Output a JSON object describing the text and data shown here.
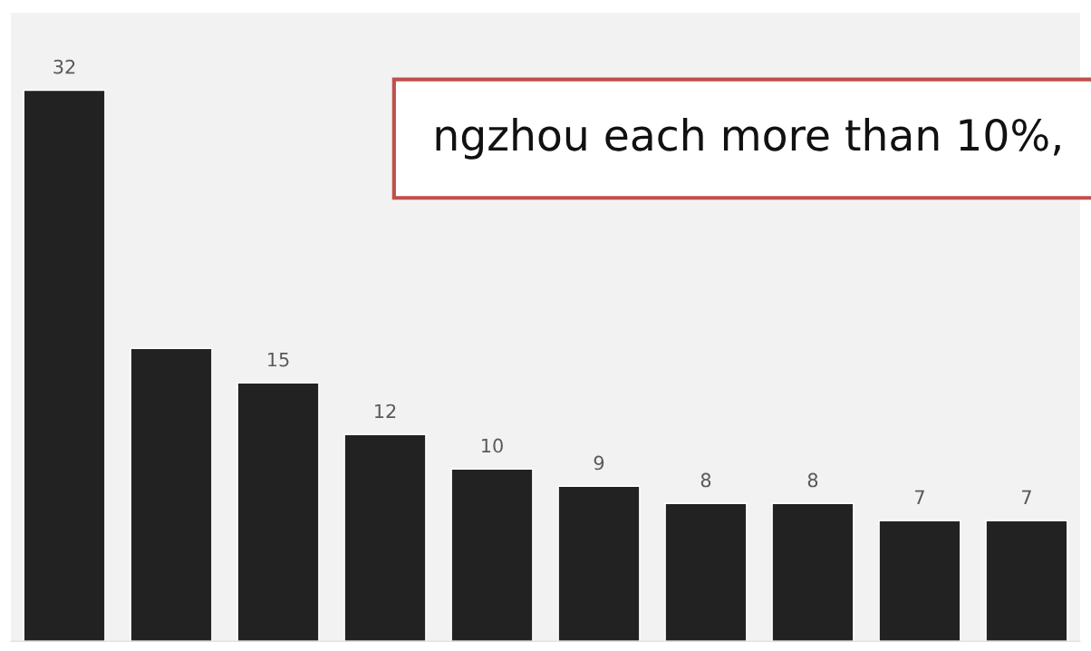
{
  "chart_data": {
    "type": "bar",
    "categories": [
      null,
      null,
      null,
      null,
      null,
      null,
      null,
      null,
      null,
      null
    ],
    "values": [
      32,
      17,
      15,
      12,
      10,
      9,
      8,
      8,
      7,
      7
    ],
    "value_labels": [
      "32",
      null,
      "15",
      "12",
      "10",
      "9",
      "8",
      "8",
      "7",
      "7"
    ],
    "color": "#222222",
    "tick_labels": false,
    "grid": false,
    "annotations": [
      "ngzhou each more than 10%,"
    ]
  }
}
